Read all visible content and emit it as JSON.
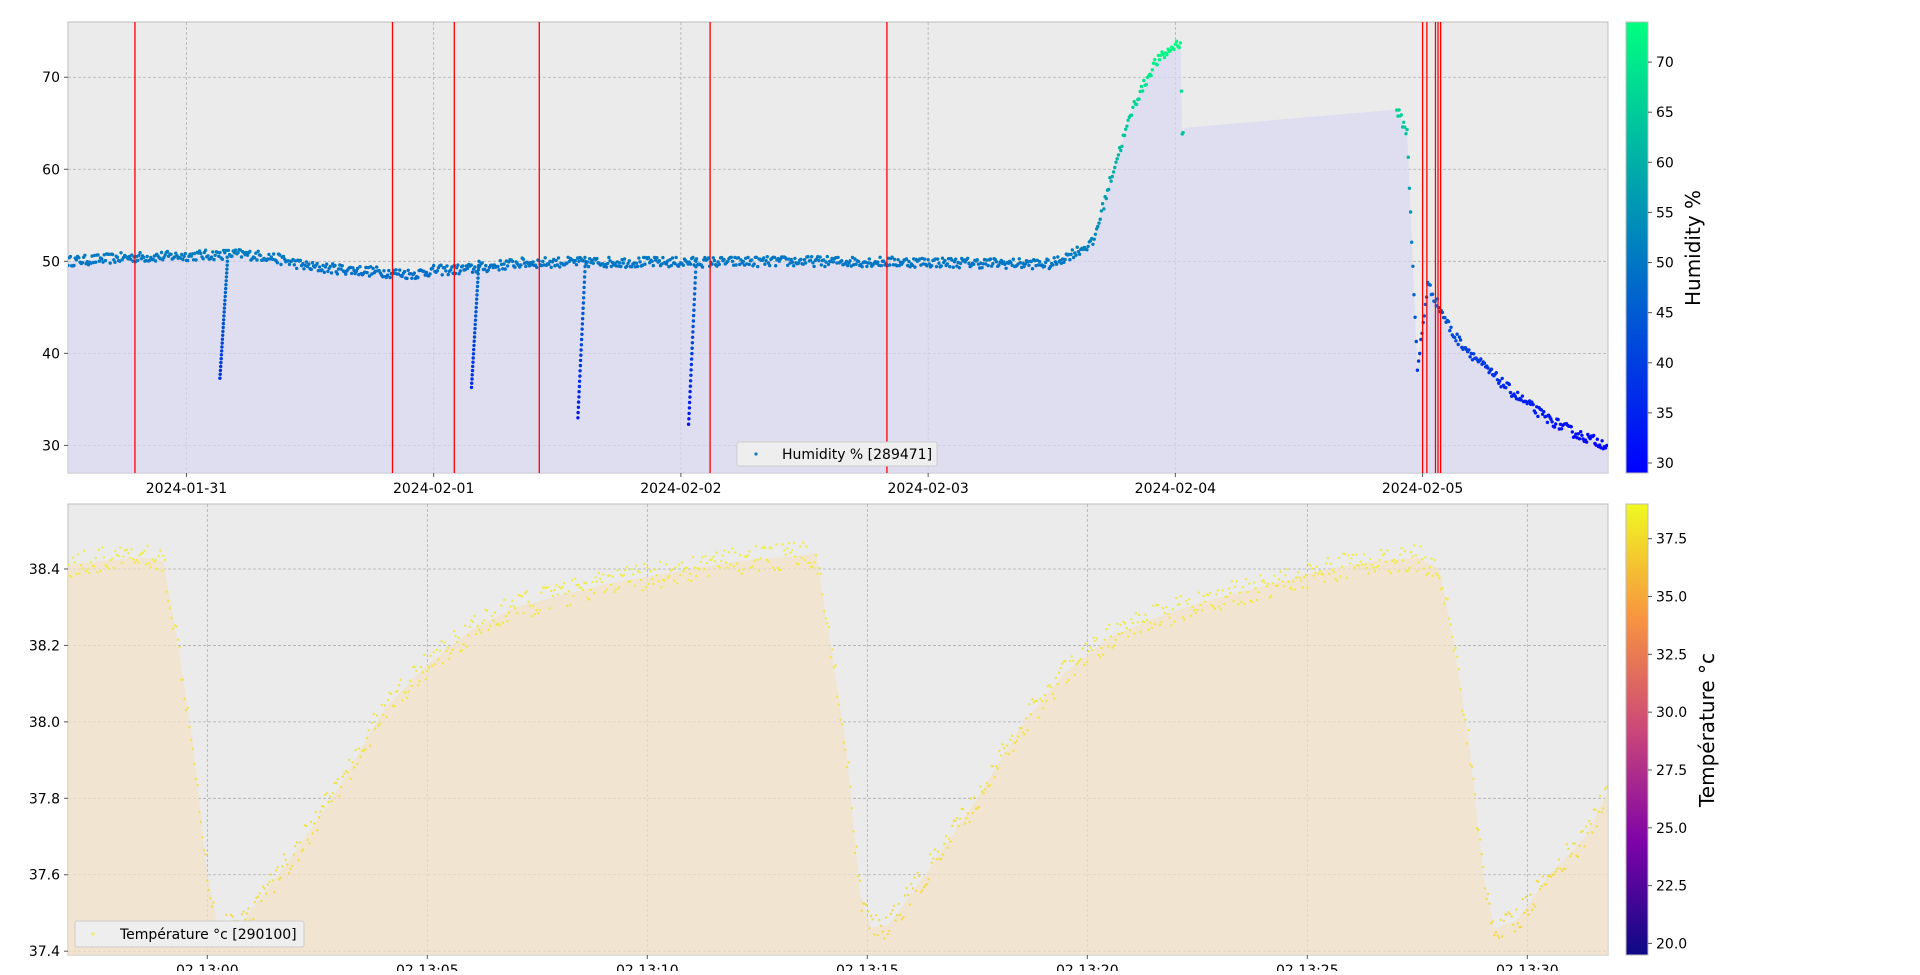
{
  "chart_data": [
    {
      "type": "scatter",
      "xlabel": "",
      "ylabel": "",
      "x_type": "date",
      "xlim": [
        "2024-01-30T12:30",
        "2024-02-05T18:00"
      ],
      "ylim": [
        27,
        76
      ],
      "x_ticks": [
        "2024-01-31",
        "2024-02-01",
        "2024-02-02",
        "2024-02-03",
        "2024-02-04",
        "2024-02-05"
      ],
      "y_ticks": [
        30,
        40,
        50,
        60,
        70
      ],
      "grid": true,
      "fill_under": true,
      "legend": {
        "position": "bottom-center",
        "entries": [
          "Humidity % [289471]"
        ]
      },
      "colorbar": {
        "label": "Humidity %",
        "min": 29,
        "max": 74,
        "ticks": [
          30,
          35,
          40,
          45,
          50,
          55,
          60,
          65,
          70
        ],
        "colormap": [
          "#0000ff",
          "#00ff80"
        ]
      },
      "series": [
        {
          "name": "Humidity % [289471]",
          "points": [
            [
              "2024-01-30T12:30",
              50
            ],
            [
              "2024-01-30T18:00",
              50.4
            ],
            [
              "2024-01-31T00:00",
              50.6
            ],
            [
              "2024-01-31T05:00",
              50.8
            ],
            [
              "2024-01-31T08:00",
              50.5
            ],
            [
              "2024-01-31T12:00",
              49.4
            ],
            [
              "2024-01-31T18:00",
              48.9
            ],
            [
              "2024-01-31T22:00",
              48.6
            ],
            [
              "2024-02-01T00:00",
              49.0
            ],
            [
              "2024-02-01T04:00",
              49.2
            ],
            [
              "2024-02-01T08:00",
              49.8
            ],
            [
              "2024-02-01T12:00",
              49.9
            ],
            [
              "2024-02-02T00:00",
              49.9
            ],
            [
              "2024-02-02T12:00",
              50.0
            ],
            [
              "2024-02-03T00:00",
              49.9
            ],
            [
              "2024-02-03T12:00",
              49.7
            ],
            [
              "2024-02-03T16:00",
              52
            ],
            [
              "2024-02-03T18:00",
              60
            ],
            [
              "2024-02-03T20:00",
              67
            ],
            [
              "2024-02-03T22:00",
              71.5
            ],
            [
              "2024-02-04T00:00",
              73.5
            ],
            [
              "2024-02-04T00:30",
              73.8
            ],
            [
              "2024-02-04T00:40",
              63.5
            ],
            [
              "2024-02-04T00:50",
              64.5
            ],
            [
              "2024-02-04T21:30",
              66.5
            ],
            [
              "2024-02-04T22:30",
              64
            ],
            [
              "2024-02-04T23:30",
              38
            ],
            [
              "2024-02-05T00:30",
              47.5
            ],
            [
              "2024-02-05T03:00",
              42
            ],
            [
              "2024-02-05T06:00",
              38.5
            ],
            [
              "2024-02-05T09:00",
              35.5
            ],
            [
              "2024-02-05T12:00",
              33
            ],
            [
              "2024-02-05T15:00",
              31.2
            ],
            [
              "2024-02-05T18:00",
              30
            ]
          ],
          "dips": [
            {
              "x": "2024-01-31T03:15",
              "min": 37.3
            },
            {
              "x": "2024-02-01T14:00",
              "min": 33
            },
            {
              "x": "2024-02-01T03:40",
              "min": 36.3
            },
            {
              "x": "2024-02-02T00:45",
              "min": 32.3
            }
          ],
          "vlines": [
            "2024-01-30T19:00",
            "2024-01-31T20:00",
            "2024-02-01T02:00",
            "2024-02-01T10:15",
            "2024-02-02T02:50",
            "2024-02-02T20:00",
            "2024-02-05T00:00",
            "2024-02-05T00:25",
            "2024-02-05T01:15",
            "2024-02-05T01:30",
            "2024-02-05T01:45"
          ],
          "vline_color": "#ff0000"
        }
      ]
    },
    {
      "type": "scatter",
      "xlabel": "",
      "ylabel": "",
      "x_type": "time",
      "xlim": [
        "12:56:50",
        "13:31:50"
      ],
      "ylim": [
        37.39,
        38.57
      ],
      "x_ticks": [
        "02 13:00",
        "02 13:05",
        "02 13:10",
        "02 13:15",
        "02 13:20",
        "02 13:25",
        "02 13:30"
      ],
      "y_ticks": [
        37.4,
        37.6,
        37.8,
        38.0,
        38.2,
        38.4
      ],
      "grid": true,
      "fill_under": true,
      "legend": {
        "position": "bottom-left",
        "entries": [
          "Température °c [290100]"
        ]
      },
      "colorbar": {
        "label": "Température °c",
        "min": 19.5,
        "max": 39,
        "ticks": [
          20.0,
          22.5,
          25.0,
          27.5,
          30.0,
          32.5,
          35.0,
          37.5
        ],
        "colormap": [
          "#0d0887",
          "#7e03a8",
          "#cc4778",
          "#f89540",
          "#f0f921"
        ]
      },
      "series": [
        {
          "name": "Température °c [290100]",
          "points": [
            [
              "12:56:50",
              38.41
            ],
            [
              "12:57:30",
              38.42
            ],
            [
              "12:58:30",
              38.43
            ],
            [
              "12:59:00",
              38.42
            ],
            [
              "12:59:20",
              38.2
            ],
            [
              "12:59:40",
              37.95
            ],
            [
              "13:00:00",
              37.6
            ],
            [
              "13:00:15",
              37.46
            ],
            [
              "13:00:45",
              37.47
            ],
            [
              "13:02:00",
              37.66
            ],
            [
              "13:03:00",
              37.83
            ],
            [
              "13:04:00",
              38.03
            ],
            [
              "13:05:00",
              38.15
            ],
            [
              "13:06:00",
              38.24
            ],
            [
              "13:07:00",
              38.3
            ],
            [
              "13:08:00",
              38.33
            ],
            [
              "13:09:00",
              38.36
            ],
            [
              "13:10:00",
              38.38
            ],
            [
              "13:11:00",
              38.4
            ],
            [
              "13:12:00",
              38.42
            ],
            [
              "13:13:00",
              38.43
            ],
            [
              "13:13:50",
              38.44
            ],
            [
              "13:14:10",
              38.2
            ],
            [
              "13:14:30",
              37.95
            ],
            [
              "13:14:50",
              37.55
            ],
            [
              "13:15:05",
              37.46
            ],
            [
              "13:15:30",
              37.47
            ],
            [
              "13:16:30",
              37.63
            ],
            [
              "13:17:30",
              37.8
            ],
            [
              "13:18:30",
              37.99
            ],
            [
              "13:19:30",
              38.13
            ],
            [
              "13:20:30",
              38.22
            ],
            [
              "13:21:30",
              38.27
            ],
            [
              "13:22:30",
              38.31
            ],
            [
              "13:23:30",
              38.34
            ],
            [
              "13:24:30",
              38.37
            ],
            [
              "13:25:30",
              38.4
            ],
            [
              "13:26:30",
              38.42
            ],
            [
              "13:27:30",
              38.43
            ],
            [
              "13:28:00",
              38.4
            ],
            [
              "13:28:20",
              38.2
            ],
            [
              "13:28:40",
              37.95
            ],
            [
              "13:29:00",
              37.6
            ],
            [
              "13:29:15",
              37.46
            ],
            [
              "13:29:45",
              37.48
            ],
            [
              "13:30:30",
              37.6
            ],
            [
              "13:31:20",
              37.7
            ],
            [
              "13:31:50",
              37.82
            ]
          ]
        }
      ]
    }
  ]
}
